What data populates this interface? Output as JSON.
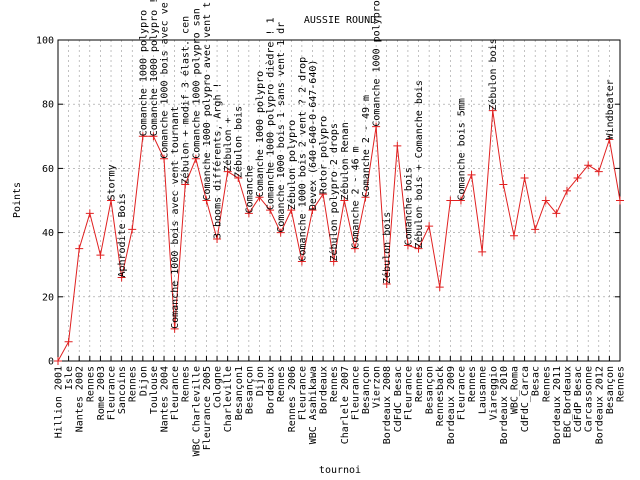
{
  "chart_data": {
    "type": "line",
    "title": "AUSSIE ROUND",
    "x_label": "tournoi",
    "y_label": "Points",
    "categories": [
      "Hillion 2001",
      "Isle",
      "Nantes 2002",
      "Rennes",
      "Rome 2003",
      "Fleurance",
      "Sancoins",
      "Rennes",
      "Dijon",
      "Toulouse",
      "Nantes 2004",
      "Fleurance",
      "Rennes",
      "WBC Charleville",
      "Fleurance 2005",
      "Cologne",
      "Charleville",
      "Besançon1",
      "Besançon",
      "Dijon",
      "Bordeaux",
      "Rennes",
      "Rennes 2006",
      "Fleurance",
      "WBC Asahikawa",
      "Bordeaux",
      "Rennes",
      "Charlele 2007",
      "Fleurance",
      "Besançon",
      "Vierzon",
      "Bordeaux 2008",
      "CdFdC Besac",
      "Fleurance",
      "Rennes",
      "Besançon",
      "Rennesback",
      "Bordeaux 2009",
      "Fleurance",
      "Rennes",
      "Lausanne",
      "Viareggio",
      "Bordeaux 2010",
      "WBC_Roma",
      "CdFdC_Carca",
      "Besac",
      "Rennes",
      "Bordeaux 2011",
      "EBC_Bordeaux",
      "CdFdP Besac",
      "Carcassonne",
      "Bordeaux 2012",
      "Besançon",
      "Rennes"
    ],
    "series": [
      {
        "name": "Points",
        "color": "#e02020",
        "values": [
          0,
          6,
          35,
          46,
          33,
          50,
          26,
          41,
          70,
          70,
          63,
          10,
          55,
          63,
          50,
          38,
          59,
          57,
          46,
          51,
          47,
          40,
          47,
          31,
          47,
          52,
          31,
          50,
          35,
          51,
          73,
          24,
          67,
          36,
          35,
          42,
          23,
          50,
          50,
          58,
          34,
          78,
          55,
          39,
          57,
          41,
          50,
          46,
          53,
          57,
          61,
          59,
          69,
          50
        ]
      }
    ],
    "ylim": [
      0,
      100
    ],
    "yticks": [
      0,
      20,
      40,
      60,
      80,
      100
    ],
    "grid": true,
    "annotations": [
      {
        "point": 5,
        "text": "Stormy"
      },
      {
        "point": 6,
        "text": "Aphrodite Bois"
      },
      {
        "point": 8,
        "text": "Comanche 1000 polypro"
      },
      {
        "point": 9,
        "text": "Comanche 1000 polypro !"
      },
      {
        "point": 10,
        "text": "Comanche 1000 bois avec ve"
      },
      {
        "point": 11,
        "text": "Comanche 1000 bois avec vent tournant"
      },
      {
        "point": 12,
        "text": "Zébulon + modif 3 élast. cen"
      },
      {
        "point": 13,
        "text": "Comanche 1000 polypro san"
      },
      {
        "point": 14,
        "text": "Comanche 1000 polypro avec vent t"
      },
      {
        "point": 15,
        "text": "3 booms différents, Argh !"
      },
      {
        "point": 16,
        "text": "Zébulon +"
      },
      {
        "point": 17,
        "text": "Zébulon bois"
      },
      {
        "point": 18,
        "text": "Comanche"
      },
      {
        "point": 19,
        "text": "Comanche 1000 polypro"
      },
      {
        "point": 20,
        "text": "Comanche 1000 polypro dièdre ! 1"
      },
      {
        "point": 21,
        "text": "Comanche 1000 bois 1 sans vent 1 dr"
      },
      {
        "point": 22,
        "text": "Zébulon polypro"
      },
      {
        "point": 23,
        "text": "Comanche 1000 bois 2 vent ? 2 drop"
      },
      {
        "point": 24,
        "text": "Devex (640-640-0-647-640)"
      },
      {
        "point": 25,
        "text": "Rotor polypro"
      },
      {
        "point": 26,
        "text": "Zébulon polypro 2 drops"
      },
      {
        "point": 27,
        "text": "Zébulon Renan"
      },
      {
        "point": 28,
        "text": "Comanche 2 - 46 m"
      },
      {
        "point": 29,
        "text": "Comanche 2 - 49 m"
      },
      {
        "point": 30,
        "text": "Comanche 1000 polypro"
      },
      {
        "point": 31,
        "text": "Zébulon bois"
      },
      {
        "point": 33,
        "text": "Comanche bois"
      },
      {
        "point": 34,
        "text": "Zébulon bois + Comanche bois"
      },
      {
        "point": 38,
        "text": "Comanche bois 5mm"
      },
      {
        "point": 41,
        "text": "Zébulon bois"
      },
      {
        "point": 52,
        "text": "Windbeater"
      }
    ]
  }
}
